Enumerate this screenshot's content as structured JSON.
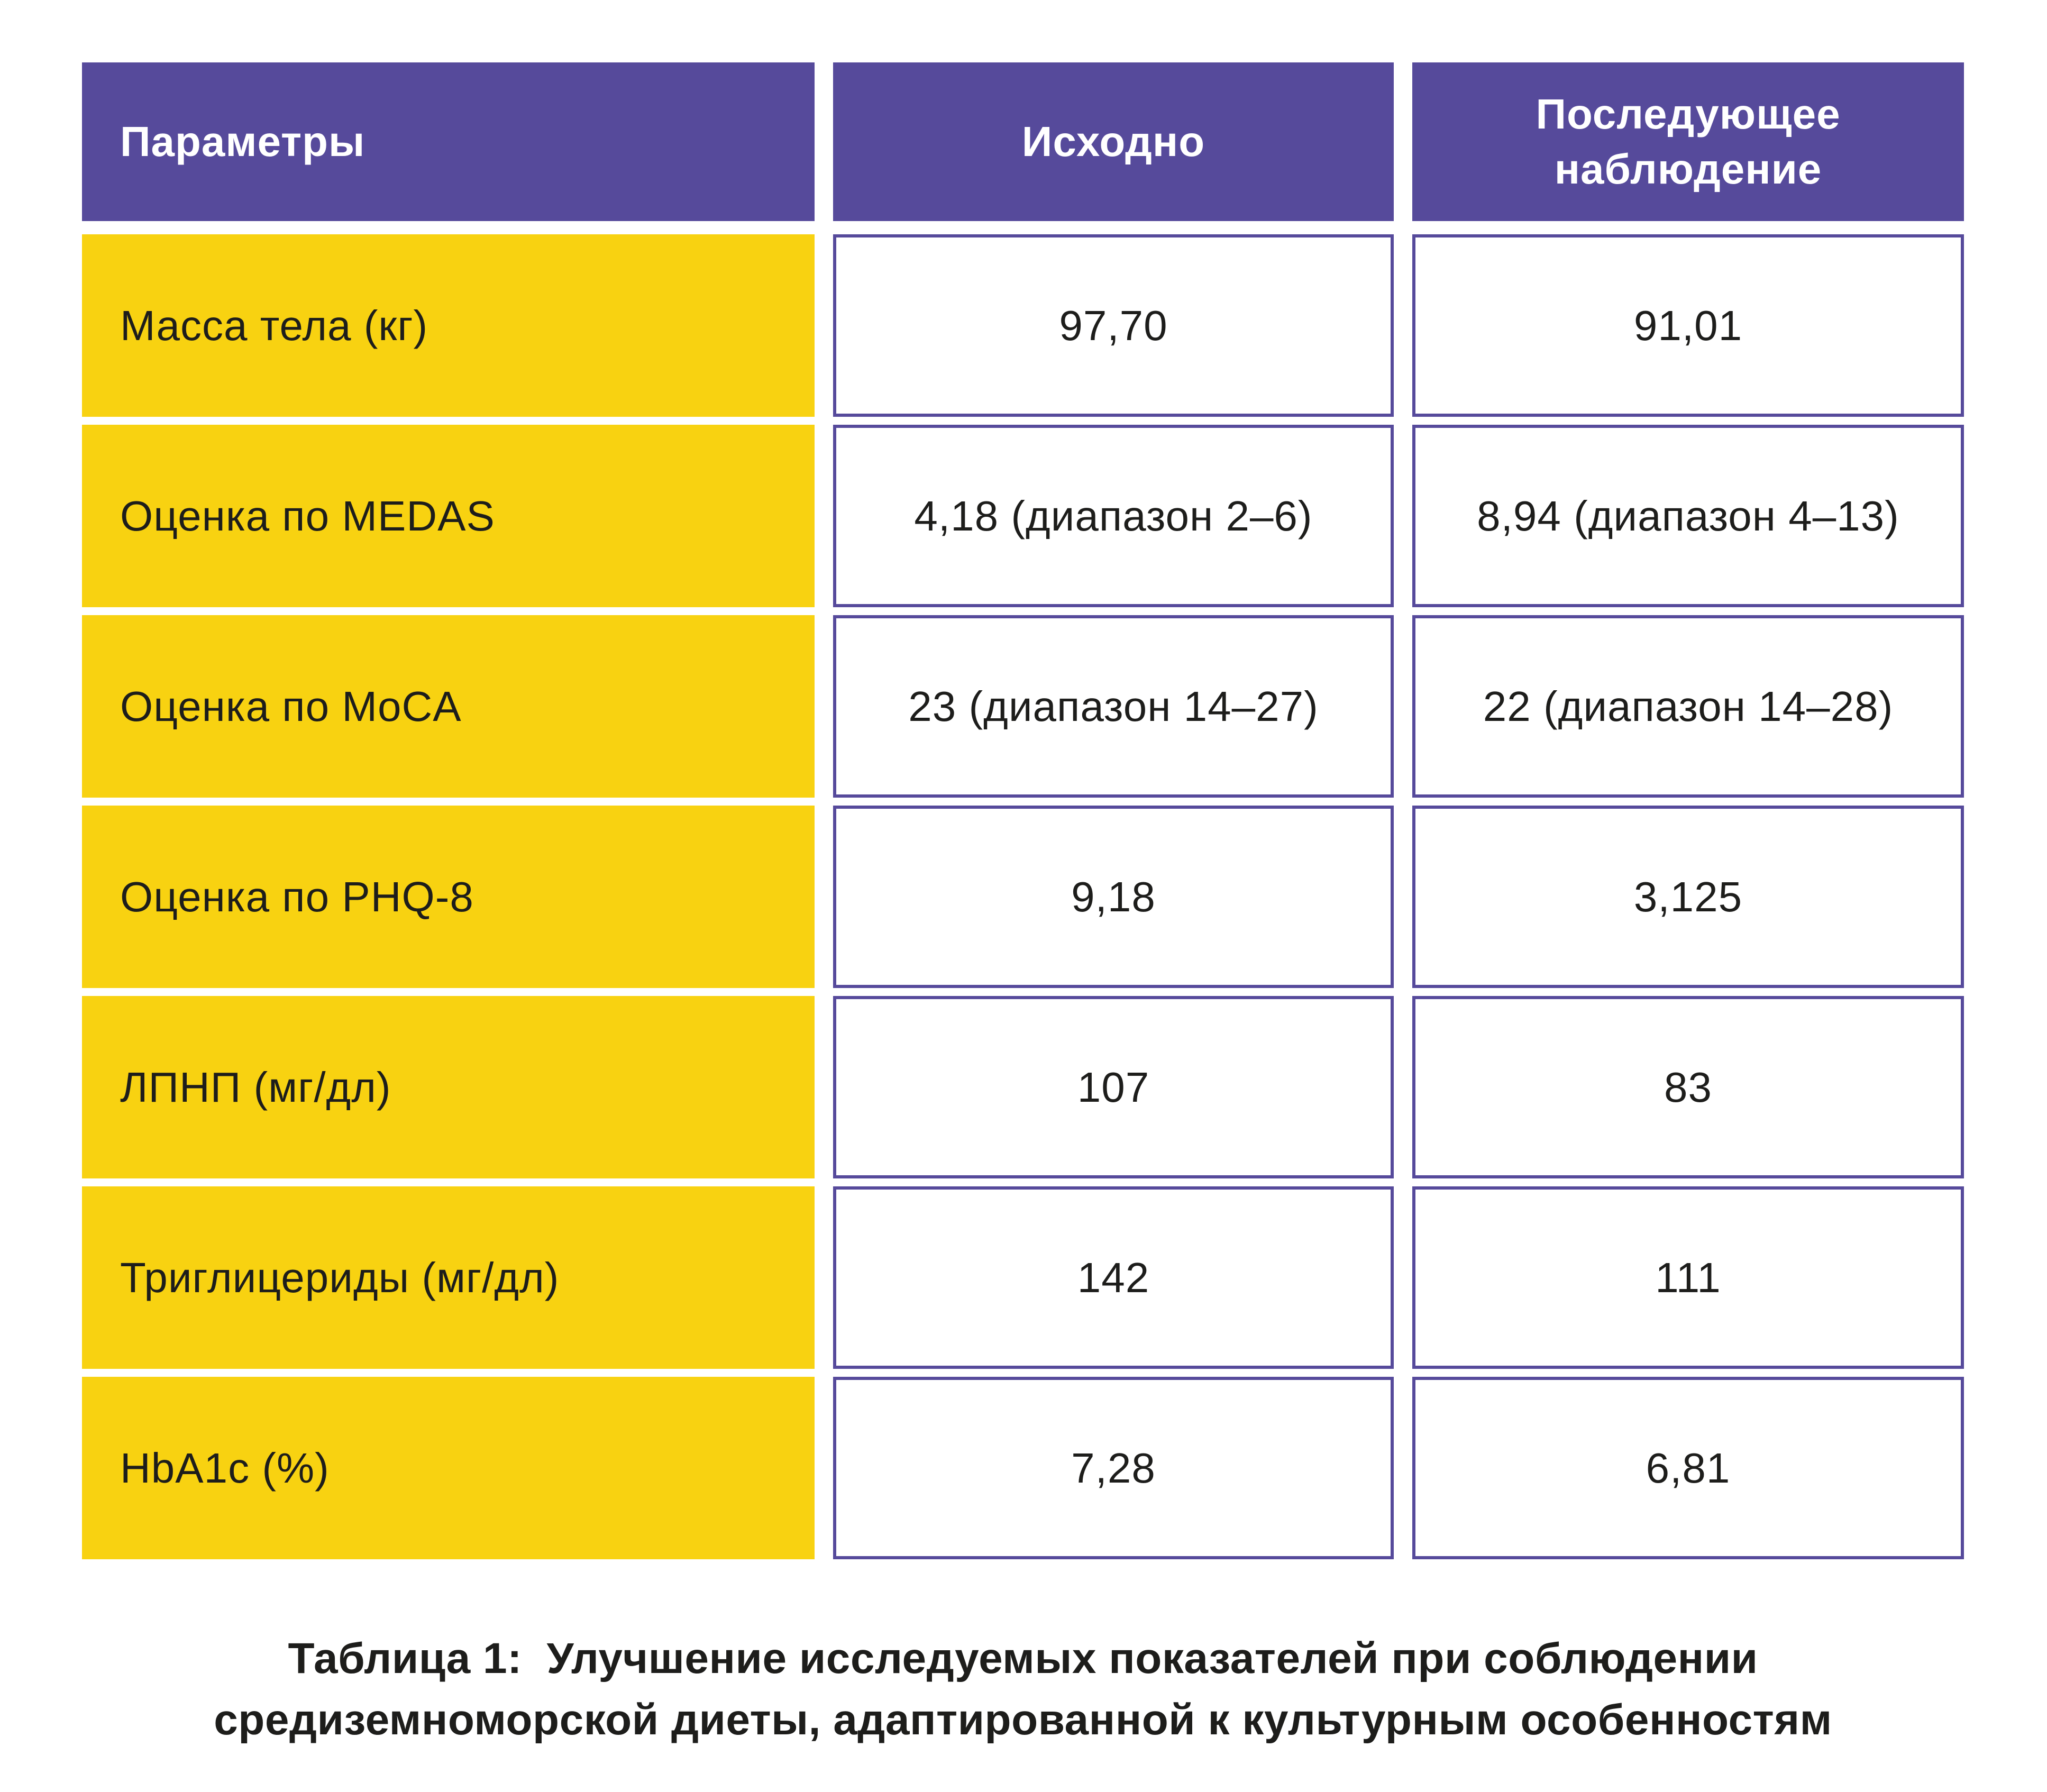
{
  "chart_data": {
    "type": "table",
    "columns": [
      "Параметры",
      "Исходно",
      "Последующее наблюдение"
    ],
    "rows": [
      {
        "label": "Масса тела (кг)",
        "baseline": "97,70",
        "followup": "91,01"
      },
      {
        "label": "Оценка по MEDAS",
        "baseline": "4,18 (диапазон 2–6)",
        "followup": "8,94 (диапазон 4–13)"
      },
      {
        "label": "Оценка по MoCA",
        "baseline": "23 (диапазон 14–27)",
        "followup": "22 (диапазон 14–28)"
      },
      {
        "label": "Оценка по PHQ-8",
        "baseline": "9,18",
        "followup": "3,125"
      },
      {
        "label": "ЛПНП (мг/дл)",
        "baseline": "107",
        "followup": "83"
      },
      {
        "label": "Триглицериды (мг/дл)",
        "baseline": "142",
        "followup": "111"
      },
      {
        "label": "HbA1c (%)",
        "baseline": "7,28",
        "followup": "6,81"
      }
    ],
    "caption_line1": "Таблица 1:  Улучшение исследуемых показателей при соблюдении",
    "caption_line2": "средиземноморской диеты, адаптированной к культурным особенностям",
    "colors": {
      "header_purple": "#564a9b",
      "row_yellow": "#f8d211",
      "cell_border_purple": "#564a9b",
      "text_dark": "#1d1d1b",
      "header_text": "#ffffff"
    },
    "layout_hints": {
      "legend": "none",
      "grid": "off",
      "value_columns_bordered": true
    }
  }
}
